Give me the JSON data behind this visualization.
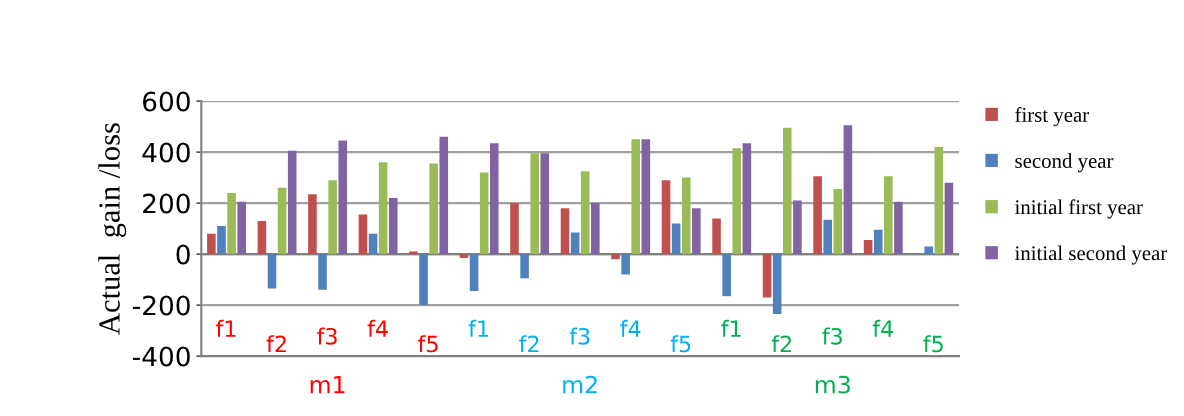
{
  "chart_data": {
    "type": "bar",
    "ylabel": "Actual  gain /loss",
    "categories": [
      "f1",
      "f2",
      "f3",
      "f4",
      "f5",
      "f1",
      "f2",
      "f3",
      "f4",
      "f5",
      "f1",
      "f2",
      "f3",
      "f4",
      "f5"
    ],
    "series": [
      {
        "name": "first year",
        "color": "#c0504d",
        "values": [
          80,
          130,
          235,
          155,
          10,
          -15,
          200,
          180,
          -20,
          290,
          140,
          -170,
          305,
          55,
          null
        ]
      },
      {
        "name": "second year",
        "color": "#4f81bd",
        "values": [
          110,
          -135,
          -140,
          80,
          -200,
          -145,
          -95,
          85,
          -80,
          120,
          -165,
          -235,
          135,
          95,
          30
        ]
      },
      {
        "name": "initial first year",
        "color": "#9bbb59",
        "values": [
          240,
          260,
          290,
          360,
          355,
          320,
          395,
          325,
          450,
          300,
          415,
          495,
          255,
          305,
          420
        ]
      },
      {
        "name": "initial second year",
        "color": "#8064a2",
        "values": [
          205,
          405,
          445,
          220,
          460,
          435,
          395,
          200,
          450,
          180,
          435,
          210,
          505,
          205,
          280
        ]
      }
    ],
    "annotations": [
      "m1",
      "m2",
      "m3"
    ],
    "ylim": [
      -400,
      600
    ],
    "yticks": [
      -400,
      -200,
      0,
      200,
      400,
      600
    ],
    "grid": "y",
    "legend": "right"
  }
}
